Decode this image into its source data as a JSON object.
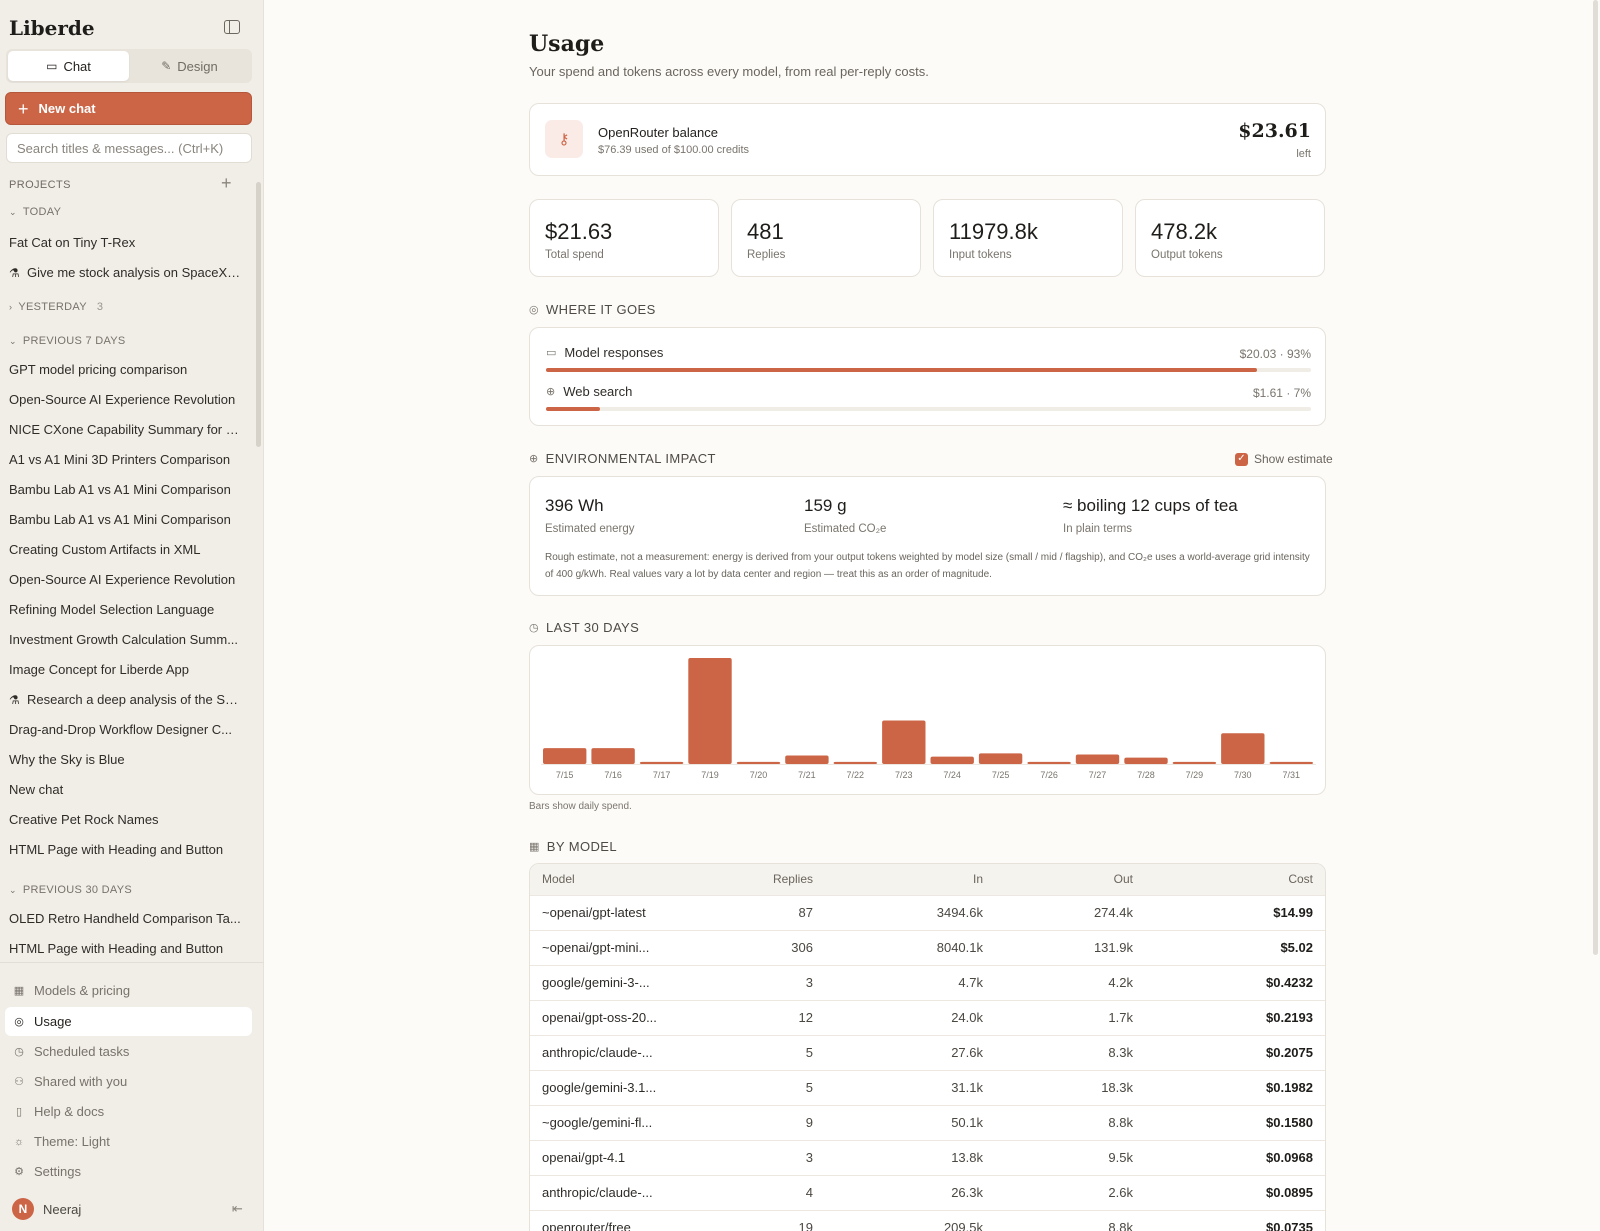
{
  "sidebar": {
    "brand": "Liberde",
    "tabs": [
      {
        "label": "Chat",
        "icon": "chat-bubble-icon"
      },
      {
        "label": "Design",
        "icon": "pencil-icon"
      }
    ],
    "new_chat_label": "New chat",
    "search_placeholder": "Search titles & messages... (Ctrl+K)",
    "projects_label": "PROJECTS",
    "groups": {
      "today": {
        "label": "TODAY",
        "items": [
          "Fat Cat on Tiny T-Rex",
          "Give me stock analysis on SpaceX ..."
        ]
      },
      "yesterday": {
        "label": "YESTERDAY",
        "count": "3"
      },
      "previous7": {
        "label": "PREVIOUS 7 DAYS",
        "items": [
          "GPT model pricing comparison",
          "Open-Source AI Experience Revolution",
          "NICE CXone Capability Summary for J...",
          "A1 vs A1 Mini 3D Printers Comparison",
          "Bambu Lab A1 vs A1 Mini Comparison",
          "Bambu Lab A1 vs A1 Mini Comparison",
          "Creating Custom Artifacts in XML",
          "Open-Source AI Experience Revolution",
          "Refining Model Selection Language",
          "Investment Growth Calculation Summ...",
          "Image Concept for Liberde App",
          "Research a deep analysis of the Sp...",
          "Drag-and-Drop Workflow Designer C...",
          "Why the Sky is Blue",
          "New chat",
          "Creative Pet Rock Names",
          "HTML Page with Heading and Button"
        ]
      },
      "previous30": {
        "label": "PREVIOUS 30 DAYS",
        "items": [
          "OLED Retro Handheld Comparison Ta...",
          "HTML Page with Heading and Button"
        ]
      }
    },
    "nav": [
      "Models & pricing",
      "Usage",
      "Scheduled tasks",
      "Shared with you",
      "Help & docs",
      "Theme: Light",
      "Settings"
    ],
    "user": {
      "initial": "N",
      "name": "Neeraj"
    }
  },
  "page": {
    "title": "Usage",
    "subtitle": "Your spend and tokens across every model, from real per-reply costs."
  },
  "balance": {
    "title": "OpenRouter balance",
    "subtitle": "$76.39 used of $100.00 credits",
    "amount": "$23.61",
    "left_label": "left"
  },
  "stats": [
    {
      "value": "$21.63",
      "label": "Total spend"
    },
    {
      "value": "481",
      "label": "Replies"
    },
    {
      "value": "11979.8k",
      "label": "Input tokens"
    },
    {
      "value": "478.2k",
      "label": "Output tokens"
    }
  ],
  "where": {
    "title": "WHERE IT GOES",
    "rows": [
      {
        "label": "Model responses",
        "value": "$20.03 · 93%",
        "percent": 93,
        "icon": "chat-bubble-icon"
      },
      {
        "label": "Web search",
        "value": "$1.61 · 7%",
        "percent": 7,
        "icon": "globe-icon"
      }
    ]
  },
  "environment": {
    "title": "ENVIRONMENTAL IMPACT",
    "show_estimate_label": "Show estimate",
    "show_estimate_checked": true,
    "metrics": [
      {
        "value": "396 Wh",
        "label": "Estimated energy"
      },
      {
        "value": "159 g",
        "label": "Estimated CO₂e"
      },
      {
        "value": "≈ boiling 12 cups of tea",
        "label": "In plain terms"
      }
    ],
    "note": "Rough estimate, not a measurement: energy is derived from your output tokens weighted by model size (small / mid / flagship), and CO₂e uses a world-average grid intensity of 400 g/kWh. Real values vary a lot by data center and region — treat this as an order of magnitude."
  },
  "last30": {
    "title": "LAST 30 DAYS",
    "caption": "Bars show daily spend."
  },
  "chart_data": {
    "type": "bar",
    "categories": [
      "7/15",
      "7/16",
      "7/17",
      "7/19",
      "7/20",
      "7/21",
      "7/22",
      "7/23",
      "7/24",
      "7/25",
      "7/26",
      "7/27",
      "7/28",
      "7/29",
      "7/30",
      "7/31"
    ],
    "values": [
      1.5,
      1.5,
      0.2,
      10.0,
      0.2,
      0.8,
      0.2,
      4.1,
      0.7,
      1.0,
      0.2,
      0.9,
      0.6,
      0.2,
      2.9,
      0.2
    ],
    "ylim": [
      0,
      10.0
    ],
    "color": "#cc6546"
  },
  "by_model": {
    "title": "BY MODEL",
    "columns": [
      "Model",
      "Replies",
      "In",
      "Out",
      "Cost"
    ],
    "rows": [
      [
        "~openai/gpt-latest",
        "87",
        "3494.6k",
        "274.4k",
        "$14.99"
      ],
      [
        "~openai/gpt-mini...",
        "306",
        "8040.1k",
        "131.9k",
        "$5.02"
      ],
      [
        "google/gemini-3-...",
        "3",
        "4.7k",
        "4.2k",
        "$0.4232"
      ],
      [
        "openai/gpt-oss-20...",
        "12",
        "24.0k",
        "1.7k",
        "$0.2193"
      ],
      [
        "anthropic/claude-...",
        "5",
        "27.6k",
        "8.3k",
        "$0.2075"
      ],
      [
        "google/gemini-3.1...",
        "5",
        "31.1k",
        "18.3k",
        "$0.1982"
      ],
      [
        "~google/gemini-fl...",
        "9",
        "50.1k",
        "8.8k",
        "$0.1580"
      ],
      [
        "openai/gpt-4.1",
        "3",
        "13.8k",
        "9.5k",
        "$0.0968"
      ],
      [
        "anthropic/claude-...",
        "4",
        "26.3k",
        "2.6k",
        "$0.0895"
      ],
      [
        "openrouter/free",
        "19",
        "209.5k",
        "8.8k",
        "$0.0735"
      ]
    ]
  },
  "colors": {
    "accent": "#cc6546",
    "sidebar_bg": "#f1eee8",
    "page_bg": "#fcfbf8"
  }
}
